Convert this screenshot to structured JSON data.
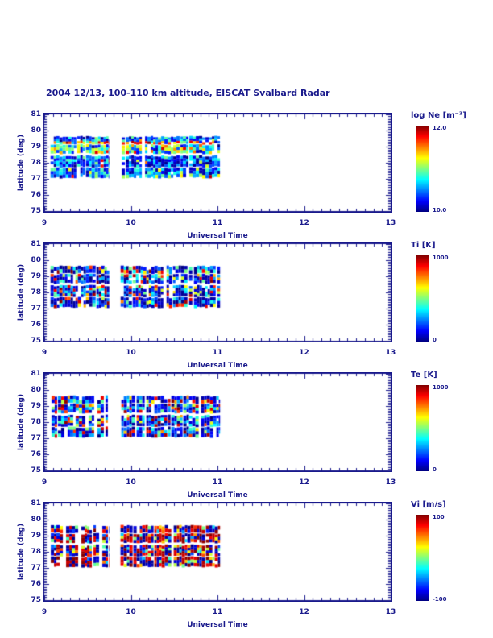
{
  "title": "2004 12/13, 100-110 km altitude, EISCAT Svalbard Radar",
  "colors": {
    "axis_text": "#1a1a8c",
    "background": "#ffffff"
  },
  "chart_data": {
    "type": "heatmap",
    "title": "2004 12/13, 100-110 km altitude, EISCAT Svalbard Radar",
    "x_axis": {
      "label": "Universal Time",
      "range": [
        9,
        13
      ],
      "major_ticks": [
        9,
        10,
        11,
        12,
        13
      ],
      "tick_labels": [
        "9",
        "10",
        "11",
        "12",
        "13"
      ],
      "minor_tick_interval": 0.1
    },
    "y_axis": {
      "label": "latitude (deg)",
      "range": [
        75,
        81
      ],
      "major_ticks": [
        81,
        80,
        79,
        78,
        77,
        76,
        75
      ],
      "tick_labels": [
        "81",
        "80",
        "79",
        "78",
        "77",
        "76",
        "75"
      ],
      "minor_tick_interval": 0.1
    },
    "data_blocks_ut": [
      [
        9.07,
        9.75
      ],
      [
        9.88,
        11.03
      ]
    ],
    "lat_bands": [
      [
        77.08,
        77.68
      ],
      [
        77.75,
        78.42
      ],
      [
        78.58,
        79.12
      ],
      [
        79.18,
        79.62
      ]
    ],
    "colormap": {
      "name": "jet",
      "stops": [
        [
          "0%",
          "#000080"
        ],
        [
          "12.5%",
          "#0000ff"
        ],
        [
          "37.5%",
          "#00ffff"
        ],
        [
          "62.5%",
          "#ffff00"
        ],
        [
          "87.5%",
          "#ff0000"
        ],
        [
          "100%",
          "#800000"
        ]
      ]
    },
    "panels": [
      {
        "id": "ne",
        "colorbar_title": "log Ne [m⁻³]",
        "cb_max_label": "12.0",
        "cb_min_label": "10.0",
        "value_range": [
          10.0,
          12.0
        ],
        "seed": 101,
        "band_dists": [
          [
            [
              0.4,
              0.08,
              0.28
            ],
            [
              0.3,
              0.28,
              0.48
            ],
            [
              0.18,
              0.02,
              0.08
            ],
            [
              0.1,
              0.48,
              0.65
            ],
            [
              0.02,
              0.75,
              0.95
            ]
          ],
          [
            [
              0.42,
              0.05,
              0.25
            ],
            [
              0.25,
              0.25,
              0.42
            ],
            [
              0.2,
              0.0,
              0.05
            ],
            [
              0.09,
              0.42,
              0.6
            ],
            [
              0.04,
              0.7,
              0.95
            ]
          ],
          [
            [
              0.38,
              0.38,
              0.6
            ],
            [
              0.22,
              0.22,
              0.38
            ],
            [
              0.16,
              0.6,
              0.78
            ],
            [
              0.14,
              0.08,
              0.22
            ],
            [
              0.06,
              0.78,
              0.95
            ],
            [
              0.04,
              0.0,
              0.08
            ]
          ],
          [
            [
              0.45,
              0.1,
              0.3
            ],
            [
              0.25,
              0.0,
              0.1
            ],
            [
              0.18,
              0.3,
              0.5
            ],
            [
              0.08,
              0.5,
              0.72
            ],
            [
              0.04,
              0.72,
              0.92
            ]
          ]
        ],
        "streak_dist": [
          [
            0.4,
            0.8,
            1.0
          ],
          [
            0.25,
            0.55,
            0.75
          ],
          [
            0.2,
            0.25,
            0.5
          ],
          [
            0.15,
            0.05,
            0.25
          ]
        ]
      },
      {
        "id": "ti",
        "colorbar_title": "Ti [K]",
        "cb_max_label": "1000",
        "cb_min_label": "0",
        "value_range": [
          0,
          1000
        ],
        "seed": 202,
        "band_dists": [
          [
            [
              0.4,
              0.0,
              0.1
            ],
            [
              0.22,
              0.1,
              0.3
            ],
            [
              0.14,
              0.3,
              0.5
            ],
            [
              0.09,
              0.5,
              0.75
            ],
            [
              0.15,
              0.78,
              1.0
            ]
          ]
        ]
      },
      {
        "id": "te",
        "colorbar_title": "Te [K]",
        "cb_max_label": "1000",
        "cb_min_label": "0",
        "value_range": [
          0,
          1000
        ],
        "seed": 303,
        "band_dists": [
          [
            [
              0.38,
              0.0,
              0.12
            ],
            [
              0.24,
              0.12,
              0.32
            ],
            [
              0.14,
              0.32,
              0.52
            ],
            [
              0.08,
              0.52,
              0.75
            ],
            [
              0.16,
              0.8,
              1.0
            ]
          ]
        ]
      },
      {
        "id": "vi",
        "colorbar_title": "Vi [m/s]",
        "cb_max_label": "100",
        "cb_min_label": "-100",
        "value_range": [
          -100,
          100
        ],
        "seed": 404,
        "band_dists": [
          [
            [
              0.4,
              0.88,
              1.0
            ],
            [
              0.33,
              0.0,
              0.1
            ],
            [
              0.09,
              0.1,
              0.35
            ],
            [
              0.09,
              0.4,
              0.65
            ],
            [
              0.09,
              0.65,
              0.88
            ]
          ]
        ]
      }
    ]
  }
}
